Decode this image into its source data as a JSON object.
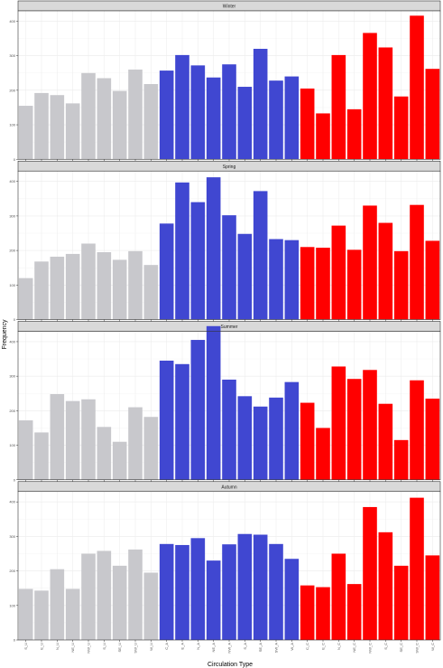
{
  "chart_data": {
    "type": "bar",
    "xlabel": "Circulation Type",
    "ylabel": "Frequency",
    "ylim": [
      0,
      430
    ],
    "yticks": [
      0,
      100,
      200,
      300,
      400
    ],
    "grid": true,
    "legend": "none",
    "categories": [
      "S_U",
      "E_U",
      "N_U",
      "NE_U",
      "NW_U",
      "S_U",
      "SE_U",
      "SW_U",
      "W_U",
      "C_A",
      "E_A",
      "N_A",
      "NE_A",
      "NW_A",
      "S_A",
      "SE_A",
      "SW_A",
      "W_A",
      "C_C",
      "E_C",
      "N_C",
      "NE_C",
      "NW_C",
      "S_C",
      "SE_C",
      "SW_C",
      "W_C"
    ],
    "bar_colors": [
      "#c8c8cc",
      "#c8c8cc",
      "#c8c8cc",
      "#c8c8cc",
      "#c8c8cc",
      "#c8c8cc",
      "#c8c8cc",
      "#c8c8cc",
      "#c8c8cc",
      "#4047d1",
      "#4047d1",
      "#4047d1",
      "#4047d1",
      "#4047d1",
      "#4047d1",
      "#4047d1",
      "#4047d1",
      "#4047d1",
      "#ff0000",
      "#ff0000",
      "#ff0000",
      "#ff0000",
      "#ff0000",
      "#ff0000",
      "#ff0000",
      "#ff0000",
      "#ff0000"
    ],
    "panels": [
      {
        "name": "Winter",
        "values": [
          155,
          192,
          186,
          162,
          250,
          235,
          198,
          260,
          218,
          257,
          302,
          272,
          237,
          275,
          210,
          320,
          228,
          240,
          205,
          133,
          302,
          145,
          366,
          324,
          182,
          416,
          262
        ]
      },
      {
        "name": "Spring",
        "values": [
          120,
          168,
          182,
          190,
          220,
          195,
          173,
          198,
          158,
          278,
          397,
          340,
          412,
          302,
          248,
          372,
          233,
          230,
          210,
          208,
          272,
          202,
          330,
          280,
          198,
          332,
          228
        ]
      },
      {
        "name": "Summer",
        "values": [
          172,
          137,
          248,
          228,
          233,
          153,
          110,
          210,
          182,
          345,
          335,
          405,
          445,
          290,
          242,
          212,
          238,
          283,
          223,
          150,
          328,
          292,
          318,
          220,
          115,
          288,
          235
        ]
      },
      {
        "name": "Autumn",
        "values": [
          148,
          143,
          205,
          148,
          250,
          258,
          215,
          262,
          195,
          278,
          275,
          295,
          230,
          277,
          307,
          305,
          278,
          235,
          158,
          153,
          250,
          162,
          385,
          312,
          215,
          412,
          245
        ]
      }
    ]
  }
}
